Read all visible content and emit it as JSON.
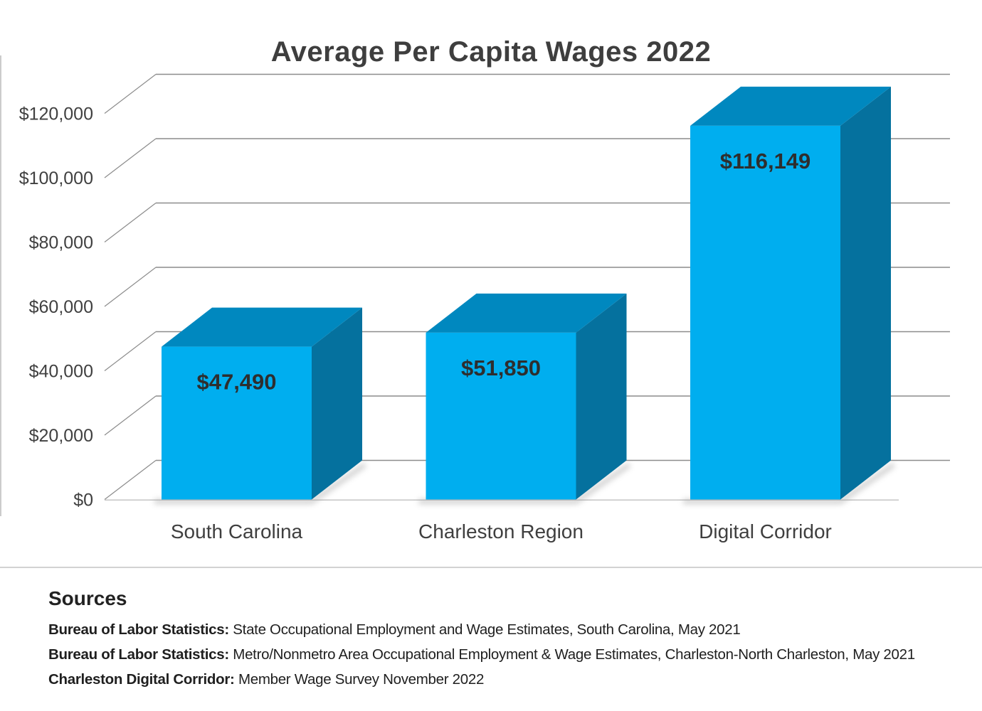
{
  "chart_data": {
    "type": "bar",
    "style": "3d-column",
    "title": "Average Per Capita Wages 2022",
    "categories": [
      "South Carolina",
      "Charleston Region",
      "Digital Corridor"
    ],
    "values": [
      47490,
      51850,
      116149
    ],
    "data_labels": [
      "$47,490",
      "$51,850",
      "$116,149"
    ],
    "y_ticks": [
      "$0",
      "$20,000",
      "$40,000",
      "$60,000",
      "$80,000",
      "$100,000",
      "$120,000"
    ],
    "ylim": [
      0,
      120000
    ],
    "y_tick_interval": 20000,
    "grid": true,
    "legend": false,
    "colors": {
      "bar_front": "#00AEEF",
      "bar_top": "#0088BF",
      "bar_side": "#05719E",
      "value_label": "#2e2e2e",
      "axis_text": "#404040",
      "gridline": "#8c8c8c",
      "floor_line": "#c4c4c4"
    }
  },
  "sources": {
    "heading": "Sources",
    "items": [
      {
        "label": "Bureau of Labor Statistics:",
        "text": "State Occupational Employment and Wage Estimates, South Carolina, May 2021"
      },
      {
        "label": "Bureau of Labor Statistics:",
        "text": "Metro/Nonmetro Area Occupational Employment & Wage Estimates, Charleston-North Charleston, May 2021"
      },
      {
        "label": "Charleston Digital Corridor:",
        "text": "Member Wage Survey November 2022"
      }
    ]
  }
}
